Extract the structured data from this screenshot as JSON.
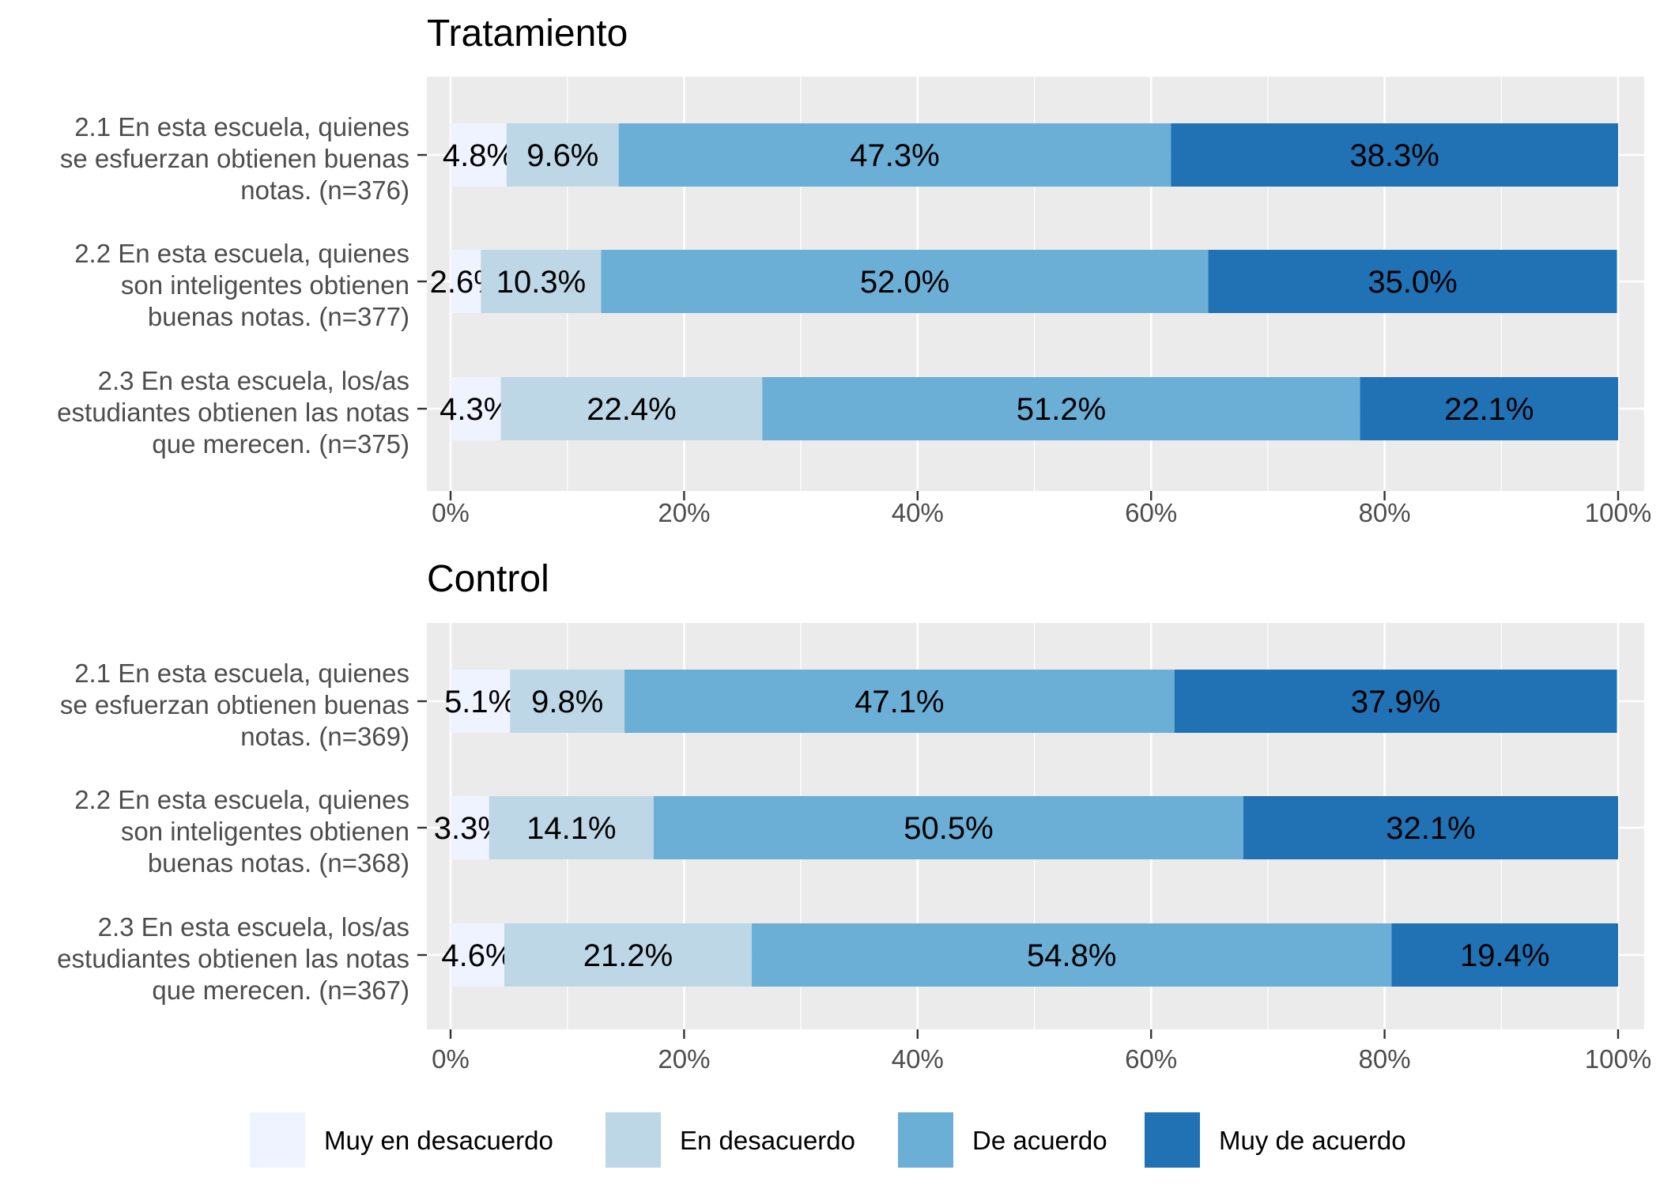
{
  "legend": {
    "position": "bottom",
    "items": [
      {
        "label": "Muy en desacuerdo",
        "color": "#eff3ff"
      },
      {
        "label": "En desacuerdo",
        "color": "#bdd7e7"
      },
      {
        "label": "De acuerdo",
        "color": "#6baed6"
      },
      {
        "label": "Muy de acuerdo",
        "color": "#2171b5"
      }
    ]
  },
  "chart_data": [
    {
      "type": "bar",
      "orientation": "horizontal",
      "stacked": true,
      "title": "Tratamiento",
      "xlim": [
        0,
        100
      ],
      "x_ticks": [
        "0%",
        "20%",
        "40%",
        "60%",
        "80%",
        "100%"
      ],
      "grid": true,
      "categories": [
        [
          "2.1 En esta escuela, quienes",
          "se esfuerzan obtienen buenas",
          "notas. (n=376)"
        ],
        [
          "2.2 En esta escuela, quienes",
          "son inteligentes obtienen",
          "buenas notas. (n=377)"
        ],
        [
          "2.3 En esta escuela, los/as",
          "estudiantes obtienen las notas",
          "que merecen. (n=375)"
        ]
      ],
      "series": [
        {
          "name": "Muy en desacuerdo",
          "values": [
            4.8,
            2.6,
            4.3
          ],
          "labels": [
            "4.8%",
            "2.6%",
            "4.3%"
          ]
        },
        {
          "name": "En desacuerdo",
          "values": [
            9.6,
            10.3,
            22.4
          ],
          "labels": [
            "9.6%",
            "10.3%",
            "22.4%"
          ]
        },
        {
          "name": "De acuerdo",
          "values": [
            47.3,
            52.0,
            51.2
          ],
          "labels": [
            "47.3%",
            "52.0%",
            "51.2%"
          ]
        },
        {
          "name": "Muy de acuerdo",
          "values": [
            38.3,
            35.0,
            22.1
          ],
          "labels": [
            "38.3%",
            "35.0%",
            "22.1%"
          ]
        }
      ]
    },
    {
      "type": "bar",
      "orientation": "horizontal",
      "stacked": true,
      "title": "Control",
      "xlim": [
        0,
        100
      ],
      "x_ticks": [
        "0%",
        "20%",
        "40%",
        "60%",
        "80%",
        "100%"
      ],
      "grid": true,
      "categories": [
        [
          "2.1 En esta escuela, quienes",
          "se esfuerzan obtienen buenas",
          "notas. (n=369)"
        ],
        [
          "2.2 En esta escuela, quienes",
          "son inteligentes obtienen",
          "buenas notas. (n=368)"
        ],
        [
          "2.3 En esta escuela, los/as",
          "estudiantes obtienen las notas",
          "que merecen. (n=367)"
        ]
      ],
      "series": [
        {
          "name": "Muy en desacuerdo",
          "values": [
            5.1,
            3.3,
            4.6
          ],
          "labels": [
            "5.1%",
            "3.3%",
            "4.6%"
          ]
        },
        {
          "name": "En desacuerdo",
          "values": [
            9.8,
            14.1,
            21.2
          ],
          "labels": [
            "9.8%",
            "14.1%",
            "21.2%"
          ]
        },
        {
          "name": "De acuerdo",
          "values": [
            47.1,
            50.5,
            54.8
          ],
          "labels": [
            "47.1%",
            "50.5%",
            "54.8%"
          ]
        },
        {
          "name": "Muy de acuerdo",
          "values": [
            37.9,
            32.1,
            19.4
          ],
          "labels": [
            "37.9%",
            "32.1%",
            "19.4%"
          ]
        }
      ]
    }
  ]
}
